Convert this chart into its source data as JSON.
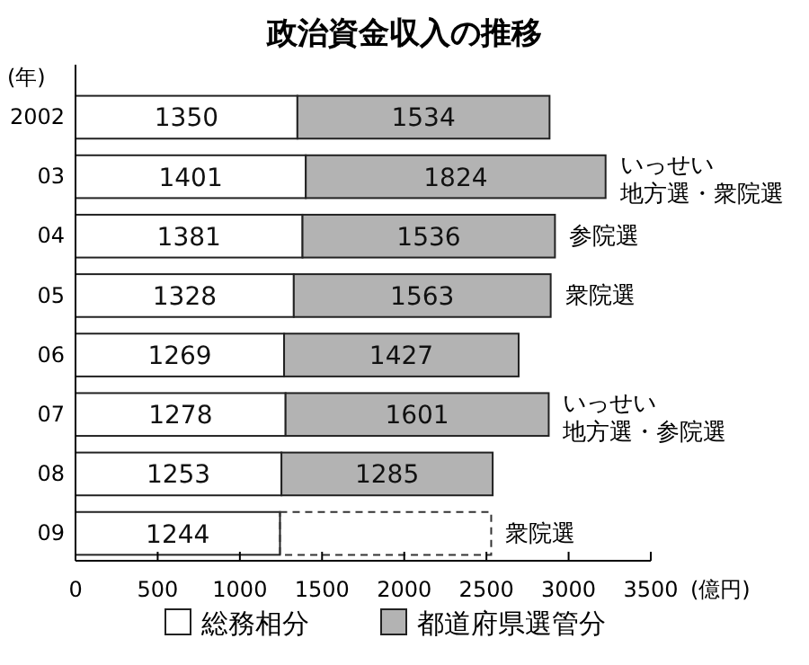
{
  "chart_data": {
    "type": "bar",
    "orientation": "horizontal",
    "stacked": true,
    "title": "政治資金収入の推移",
    "ylabel": "(年)",
    "xlabel": "(億円)",
    "categories": [
      "2002",
      "03",
      "04",
      "05",
      "06",
      "07",
      "08",
      "09"
    ],
    "series": [
      {
        "name": "総務相分",
        "color": "#ffffff",
        "values": [
          1350,
          1401,
          1381,
          1328,
          1269,
          1278,
          1253,
          1244
        ]
      },
      {
        "name": "都道府県選管分",
        "color": "#b3b3b3",
        "values": [
          1534,
          1824,
          1536,
          1563,
          1427,
          1601,
          1285,
          null
        ]
      }
    ],
    "xlim": [
      0,
      3500
    ],
    "xticks": [
      0,
      500,
      1000,
      1500,
      2000,
      2500,
      3000,
      3500
    ],
    "data_labels": true,
    "legend": "bottom",
    "grid": false,
    "annotations": [
      "いっせい地方選・衆院選",
      "参院選",
      "衆院選",
      "いっせい地方選・参院選",
      "衆院選"
    ]
  }
}
